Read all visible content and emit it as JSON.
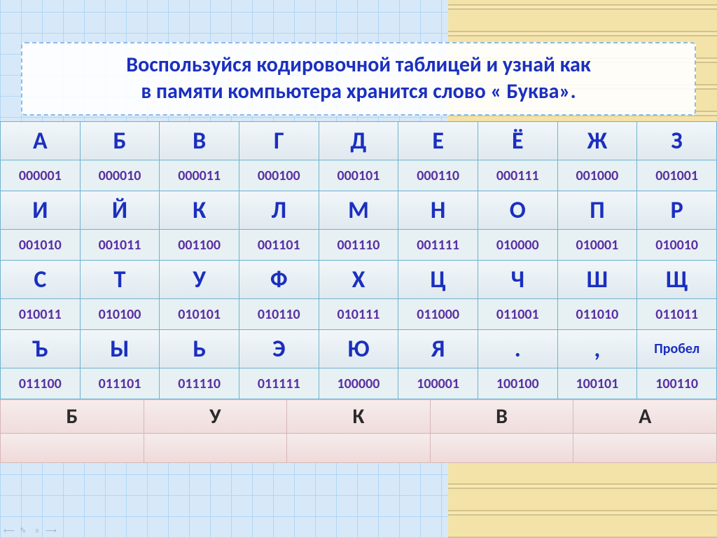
{
  "title": {
    "line1": "Воспользуйся кодировочной таблицей  и узнай как",
    "line2": "в памяти компьютера хранится слово « Буква».",
    "color": "#1b2fbf",
    "fontsize": 30
  },
  "colors": {
    "tableBorder": "#6fb4d0",
    "letterText": "#1b2fbf",
    "codeText": "#5a2fa3",
    "wordBorder": "#d7b7b7",
    "wordText": "#2a2a2a",
    "bgLeft": "#d7e9f9",
    "bgRight": "#f3e3a8"
  },
  "encoding": {
    "columns": 9,
    "rows": [
      {
        "letters": [
          "А",
          "Б",
          "В",
          "Г",
          "Д",
          "Е",
          "Ё",
          "Ж",
          "З"
        ],
        "codes": [
          "000001",
          "000010",
          "000011",
          "000100",
          "000101",
          "000110",
          "000111",
          "001000",
          "001001"
        ]
      },
      {
        "letters": [
          "И",
          "Й",
          "К",
          "Л",
          "М",
          "Н",
          "О",
          "П",
          "Р"
        ],
        "codes": [
          "001010",
          "001011",
          "001100",
          "001101",
          "001110",
          "001111",
          "010000",
          "010001",
          "010010"
        ]
      },
      {
        "letters": [
          "С",
          "Т",
          "У",
          "Ф",
          "Х",
          "Ц",
          "Ч",
          "Ш",
          "Щ"
        ],
        "codes": [
          "010011",
          "010100",
          "010101",
          "010110",
          "010111",
          "011000",
          "011001",
          "011010",
          "011011"
        ]
      },
      {
        "letters": [
          "Ъ",
          "Ы",
          "Ь",
          "Э",
          "Ю",
          "Я",
          ".",
          ",",
          "Пробел"
        ],
        "codes": [
          "011100",
          "011101",
          "011110",
          "011111",
          "100000",
          "100001",
          "100100",
          "100101",
          "100110"
        ]
      }
    ]
  },
  "word": {
    "letters": [
      "Б",
      "У",
      "К",
      "В",
      "А"
    ],
    "answers": [
      "",
      "",
      "",
      "",
      ""
    ]
  },
  "toolbar": {
    "icons": [
      "back-arrow-icon",
      "pen-icon",
      "menu-icon",
      "forward-arrow-icon"
    ]
  }
}
